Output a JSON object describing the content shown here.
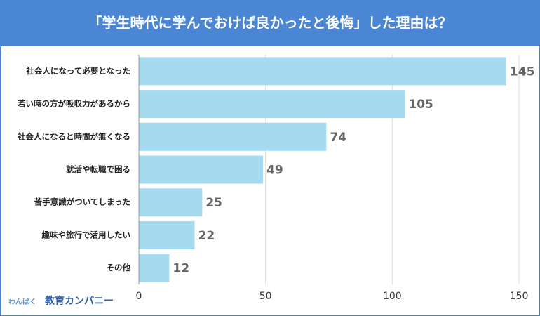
{
  "chart_data": {
    "type": "bar",
    "orientation": "horizontal",
    "title": "「学生時代に学んでおけば良かったと後悔」した理由は？",
    "categories": [
      "社会人になって必要となった",
      "若い時の方が吸収力があるから",
      "社会人になると時間が無くなる",
      "就活や転職で困る",
      "苦手意識がついてしまった",
      "趣味や旅行で活用したい",
      "その他"
    ],
    "values": [
      145,
      105,
      74,
      49,
      25,
      22,
      12
    ],
    "color": "#a6dbef",
    "xlim": [
      0,
      150
    ],
    "xticks": [
      0,
      50,
      100,
      150
    ],
    "grid": true
  },
  "brand": {
    "name": "わんぱく",
    "company": "教育カンパニー"
  }
}
